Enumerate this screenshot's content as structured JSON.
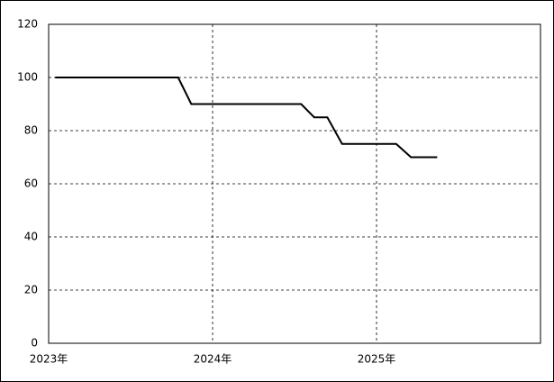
{
  "chart_data": {
    "type": "line",
    "x": [
      2023.04,
      2023.79,
      2023.87,
      2024.54,
      2024.62,
      2024.7,
      2024.79,
      2025.12,
      2025.21,
      2025.37
    ],
    "series": [
      {
        "color": "#000000",
        "values": [
          100,
          100,
          90,
          90,
          85,
          85,
          75,
          75,
          70,
          70
        ]
      }
    ],
    "xlim": [
      2023,
      2026
    ],
    "xticks": [
      {
        "value": 2023,
        "label": "2023年"
      },
      {
        "value": 2024,
        "label": "2024年"
      },
      {
        "value": 2025,
        "label": "2025年"
      }
    ],
    "ylim": [
      0,
      120
    ],
    "yticks": [
      0,
      20,
      40,
      60,
      80,
      100,
      120
    ],
    "grid": true
  }
}
